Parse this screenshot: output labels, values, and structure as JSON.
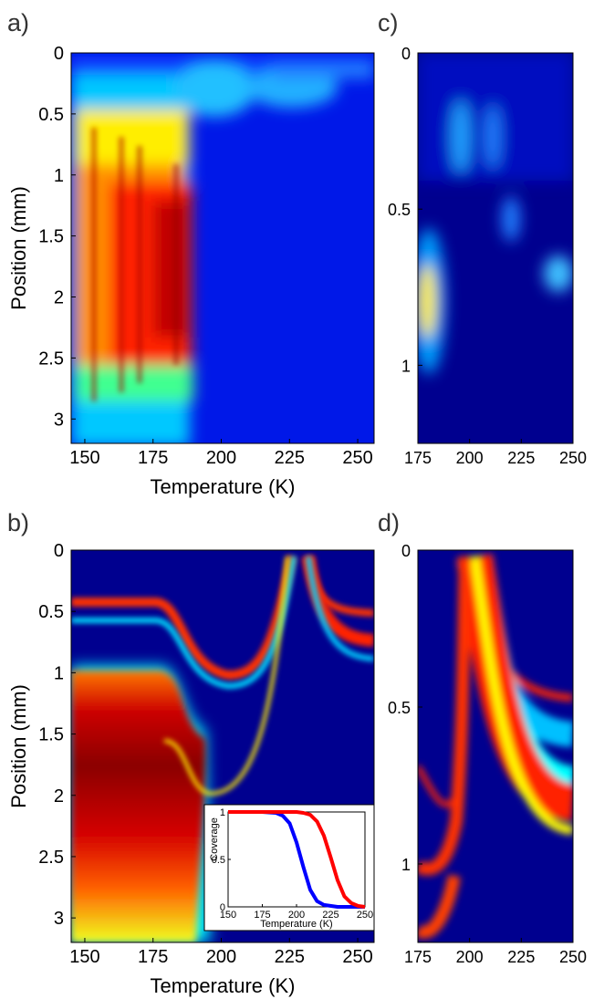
{
  "colormap": [
    "#00008f",
    "#0000ff",
    "#00ffff",
    "#ffff00",
    "#ff0000",
    "#800000"
  ],
  "chart_data": [
    {
      "panel": "a)",
      "type": "heatmap",
      "xlabel": "Temperature (K)",
      "ylabel": "Position (mm)",
      "xlim": [
        145,
        256
      ],
      "ylim": [
        0,
        3.2
      ],
      "y_inverted": true,
      "xticks": [
        150,
        175,
        200,
        225,
        250
      ],
      "yticks": [
        0,
        0.5,
        1,
        1.5,
        2,
        2.5,
        3
      ],
      "xtick_labels": [
        "150",
        "175",
        "200",
        "225",
        "250"
      ],
      "ytick_labels": [
        "0",
        "0.5",
        "1",
        "1.5",
        "2",
        "2.5",
        "3"
      ]
    },
    {
      "panel": "b)",
      "type": "heatmap",
      "xlabel": "Temperature (K)",
      "ylabel": "Position (mm)",
      "xlim": [
        145,
        256
      ],
      "ylim": [
        0,
        3.2
      ],
      "y_inverted": true,
      "xticks": [
        150,
        175,
        200,
        225,
        250
      ],
      "yticks": [
        0,
        0.5,
        1,
        1.5,
        2,
        2.5,
        3
      ],
      "xtick_labels": [
        "150",
        "175",
        "200",
        "225",
        "250"
      ],
      "ytick_labels": [
        "0",
        "0.5",
        "1",
        "1.5",
        "2",
        "2.5",
        "3"
      ],
      "inset": {
        "type": "line",
        "xlabel": "Temperature (K)",
        "ylabel": "Coverage",
        "xlim": [
          150,
          250
        ],
        "ylim": [
          0,
          1
        ],
        "xticks": [
          150,
          175,
          200,
          225,
          250
        ],
        "yticks": [
          0,
          0.5,
          1
        ],
        "xtick_labels": [
          "150",
          "175",
          "200",
          "225",
          "250"
        ],
        "ytick_labels": [
          "0",
          "0.5",
          "1"
        ],
        "series": [
          {
            "color": "#0000ff",
            "x": [
              150,
              175,
              185,
              190,
              195,
              200,
              205,
              210,
              215,
              220,
              230,
              250
            ],
            "y": [
              1.0,
              1.0,
              0.99,
              0.96,
              0.88,
              0.68,
              0.42,
              0.18,
              0.06,
              0.02,
              0.0,
              0.0
            ]
          },
          {
            "color": "#ff0000",
            "x": [
              150,
              200,
              205,
              210,
              215,
              220,
              225,
              230,
              235,
              240,
              245,
              250
            ],
            "y": [
              1.0,
              1.0,
              0.99,
              0.97,
              0.9,
              0.75,
              0.52,
              0.28,
              0.11,
              0.04,
              0.01,
              0.0
            ]
          }
        ]
      }
    },
    {
      "panel": "c)",
      "type": "heatmap",
      "xlabel": "",
      "ylabel": "",
      "xlim": [
        175,
        250
      ],
      "ylim": [
        0,
        1.25
      ],
      "y_inverted": true,
      "xticks": [
        175,
        200,
        225,
        250
      ],
      "yticks": [
        0,
        0.5,
        1
      ],
      "xtick_labels": [
        "175",
        "200",
        "225",
        "250"
      ],
      "ytick_labels": [
        "0",
        "0.5",
        "1"
      ]
    },
    {
      "panel": "d)",
      "type": "heatmap",
      "xlabel": "",
      "ylabel": "",
      "xlim": [
        175,
        250
      ],
      "ylim": [
        0,
        1.25
      ],
      "y_inverted": true,
      "xticks": [
        175,
        200,
        225,
        250
      ],
      "yticks": [
        0,
        0.5,
        1
      ],
      "xtick_labels": [
        "175",
        "200",
        "225",
        "250"
      ],
      "ytick_labels": [
        "0",
        "0.5",
        "1"
      ]
    }
  ]
}
